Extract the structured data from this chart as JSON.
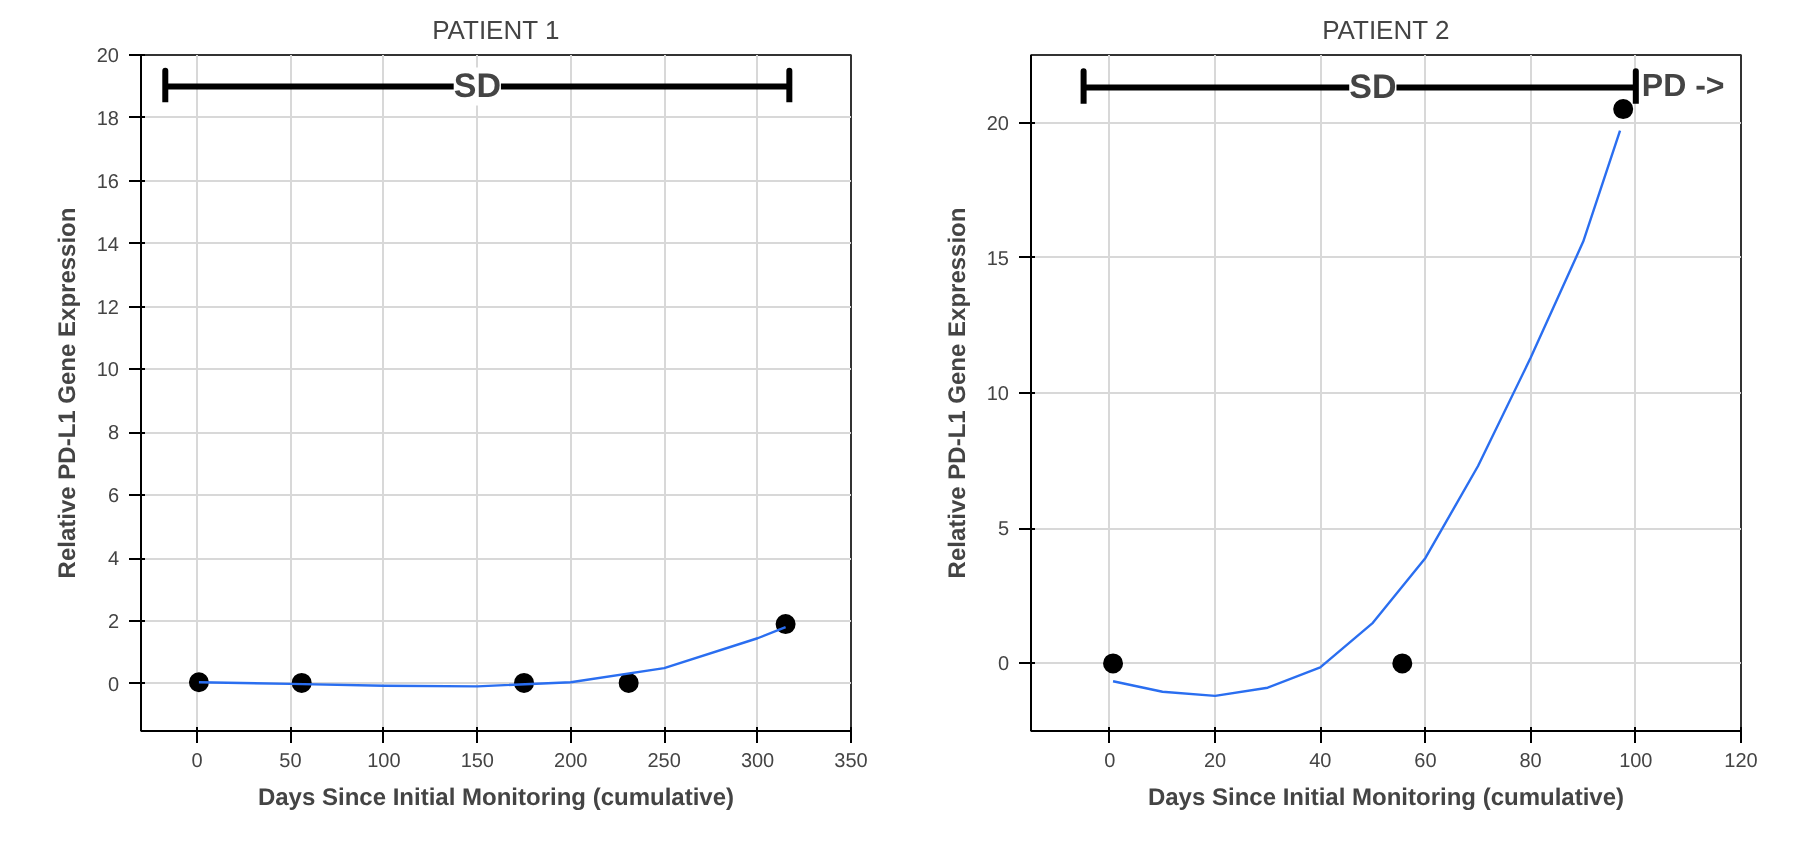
{
  "chart_data": [
    {
      "type": "scatter",
      "title": "PATIENT 1",
      "xlabel": "Days Since Initial Monitoring (cumulative)",
      "ylabel": "Relative PD-L1 Gene Expression",
      "xlim": [
        -30,
        350
      ],
      "ylim": [
        -1.5,
        20
      ],
      "xticks": [
        0,
        50,
        100,
        150,
        200,
        250,
        300,
        350
      ],
      "yticks": [
        0,
        2,
        4,
        6,
        8,
        10,
        12,
        14,
        16,
        18,
        20
      ],
      "grid": true,
      "annotations": [
        {
          "text": "SD",
          "x": 150,
          "y": 19
        }
      ],
      "series": [
        {
          "marker": "circle",
          "color": "#000000",
          "x": [
            1,
            56,
            175,
            231,
            315
          ],
          "values": [
            0.05,
            0.03,
            0.03,
            0.03,
            1.9
          ]
        },
        {
          "type": "line",
          "marker": "none",
          "color": "#2a6ef0",
          "x": [
            1,
            50,
            100,
            150,
            200,
            250,
            300,
            315
          ],
          "values": [
            0.05,
            0.0,
            -0.06,
            -0.08,
            0.05,
            0.5,
            1.45,
            1.8
          ]
        },
        {
          "type": "line",
          "marker": "none",
          "color": "#000000",
          "x": [
            -17,
            -17,
            -17,
            317,
            317,
            317
          ],
          "values": [
            18.5,
            19.5,
            19,
            19,
            19.5,
            18.5
          ]
        }
      ]
    },
    {
      "type": "scatter",
      "title": "PATIENT 2",
      "xlabel": "Days Since Initial Monitoring (cumulative)",
      "ylabel": "Relative PD-L1 Gene Expression",
      "xlim": [
        -15,
        120
      ],
      "ylim": [
        -2.5,
        22.5
      ],
      "xticks": [
        0,
        20,
        40,
        60,
        80,
        100,
        120
      ],
      "yticks": [
        0,
        5,
        10,
        15,
        20
      ],
      "grid": true,
      "annotations": [
        {
          "text": "SD",
          "x": 50,
          "y": 21.3
        },
        "PD ->"
      ],
      "series": [
        {
          "marker": "circle",
          "color": "#000000",
          "x": [
            0.6,
            55.6,
            97.6
          ],
          "values": [
            0,
            0,
            20.5
          ]
        },
        {
          "type": "line",
          "marker": "none",
          "color": "#2a6ef0",
          "x": [
            0.6,
            10,
            20,
            30,
            40,
            50,
            60,
            70,
            80,
            90,
            97
          ],
          "values": [
            -0.66,
            -1.05,
            -1.2,
            -0.9,
            -0.15,
            1.5,
            3.9,
            7.3,
            11.3,
            15.6,
            19.7
          ]
        },
        {
          "type": "line",
          "marker": "none",
          "color": "#000000",
          "x": [
            -5,
            -5,
            -5,
            100,
            100,
            100
          ],
          "values": [
            20.7,
            21.9,
            21.3,
            21.3,
            21.9,
            20.7
          ]
        }
      ]
    }
  ]
}
